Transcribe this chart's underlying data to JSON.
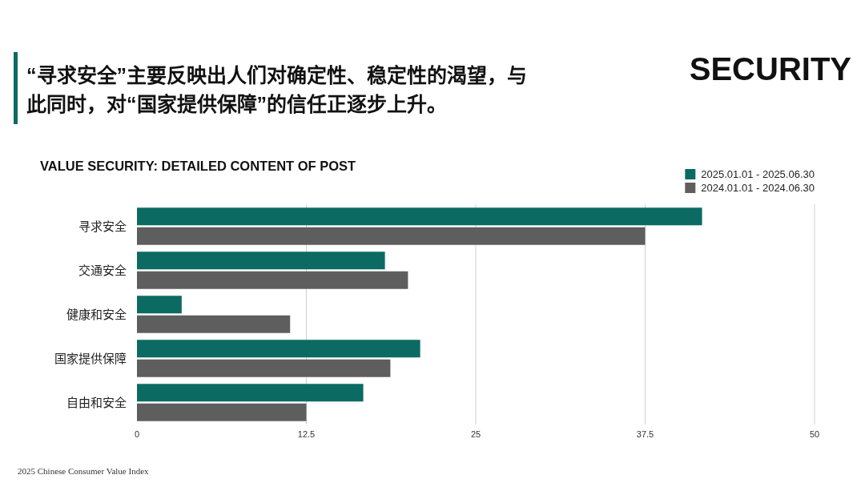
{
  "chart_data": {
    "type": "bar",
    "orientation": "horizontal",
    "title": "“寻求安全”主要反映出人们对确定性、稳定性的渴望，与此同时，对“国家提供保障”的信任正逐步上升。",
    "subtitle": "VALUE SECURITY: DETAILED CONTENT OF POST",
    "annotations": [
      "SECURITY",
      "2025 Chinese Consumer Value Index"
    ],
    "categories": [
      "寻求安全",
      "交通安全",
      "健康和安全",
      "国家提供保障",
      "自由和安全"
    ],
    "series": [
      {
        "name": "2025.01.01 - 2025.06.30",
        "color": "#0b6b63",
        "values": [
          41.7,
          18.3,
          3.3,
          20.9,
          16.7
        ]
      },
      {
        "name": "2024.01.01 - 2024.06.30",
        "color": "#5e5e5e",
        "values": [
          37.5,
          20.0,
          11.3,
          18.7,
          12.5
        ]
      }
    ],
    "xlim": [
      0,
      50
    ],
    "xticks": [
      0,
      12.5,
      25,
      37.5,
      50
    ],
    "grid": "x",
    "legend": "top right"
  }
}
